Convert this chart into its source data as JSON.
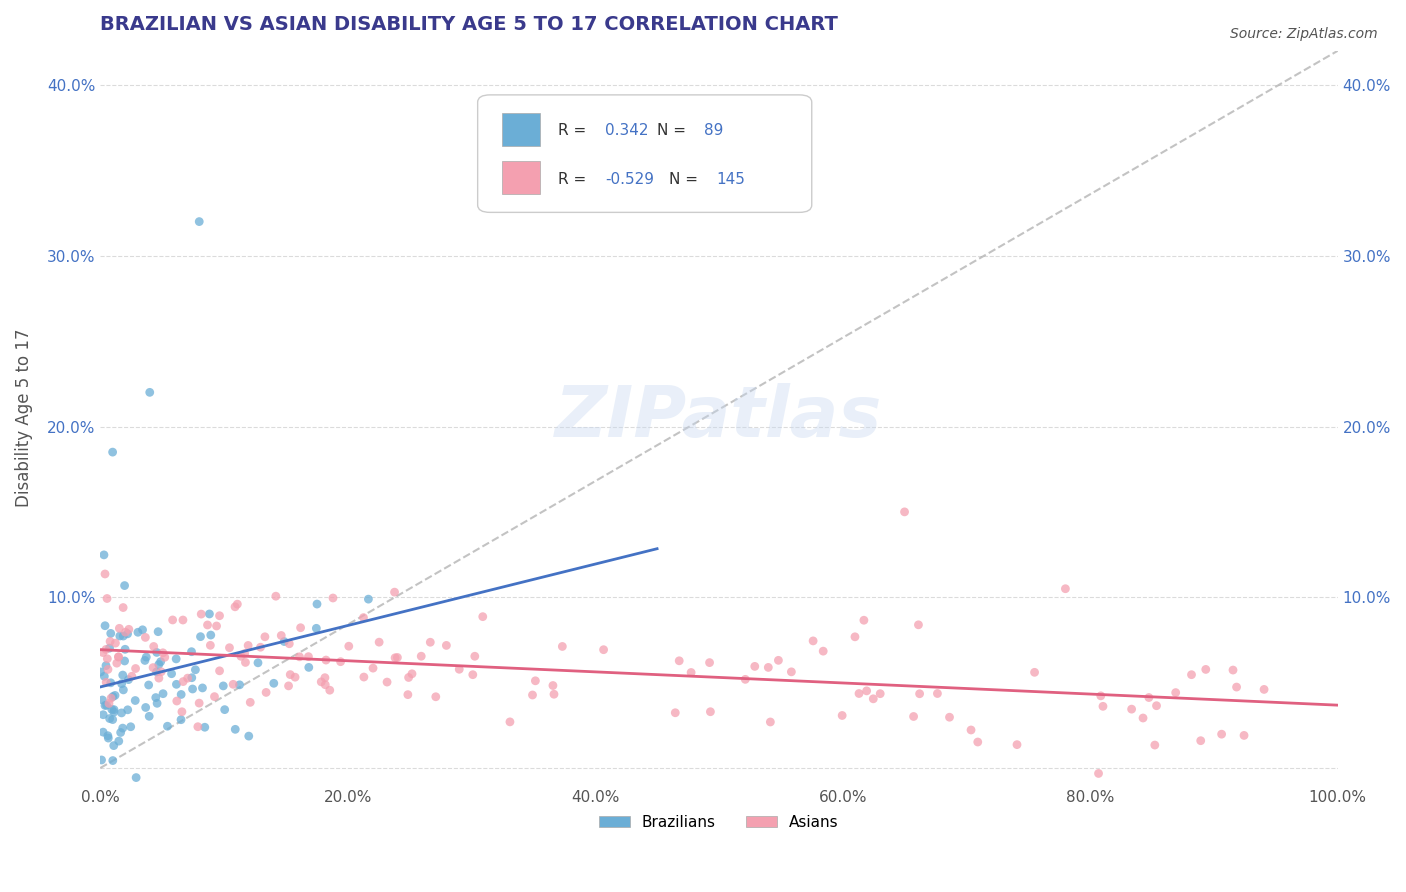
{
  "title": "BRAZILIAN VS ASIAN DISABILITY AGE 5 TO 17 CORRELATION CHART",
  "source": "Source: ZipAtlas.com",
  "xlabel": "",
  "ylabel": "Disability Age 5 to 17",
  "xlim": [
    0,
    1.0
  ],
  "ylim": [
    -0.01,
    0.42
  ],
  "xticks": [
    0.0,
    0.2,
    0.4,
    0.6,
    0.8,
    1.0
  ],
  "xtick_labels": [
    "0.0%",
    "20.0%",
    "40.0%",
    "60.0%",
    "80.0%",
    "100.0%"
  ],
  "yticks": [
    0.0,
    0.1,
    0.2,
    0.3,
    0.4
  ],
  "ytick_labels": [
    "",
    "10.0%",
    "20.0%",
    "30.0%",
    "40.0%"
  ],
  "brazilian_R": 0.342,
  "brazilian_N": 89,
  "asian_R": -0.529,
  "asian_N": 145,
  "blue_color": "#6baed6",
  "pink_color": "#f4a0b0",
  "blue_line_color": "#4472c4",
  "pink_line_color": "#e06080",
  "dashed_line_color": "#aaaaaa",
  "background_color": "#ffffff",
  "grid_color": "#cccccc",
  "watermark_text": "ZIPatlas",
  "legend_label_brazilian": "Brazilians",
  "legend_label_asian": "Asians",
  "title_color": "#3a3a8c",
  "title_fontsize": 14
}
